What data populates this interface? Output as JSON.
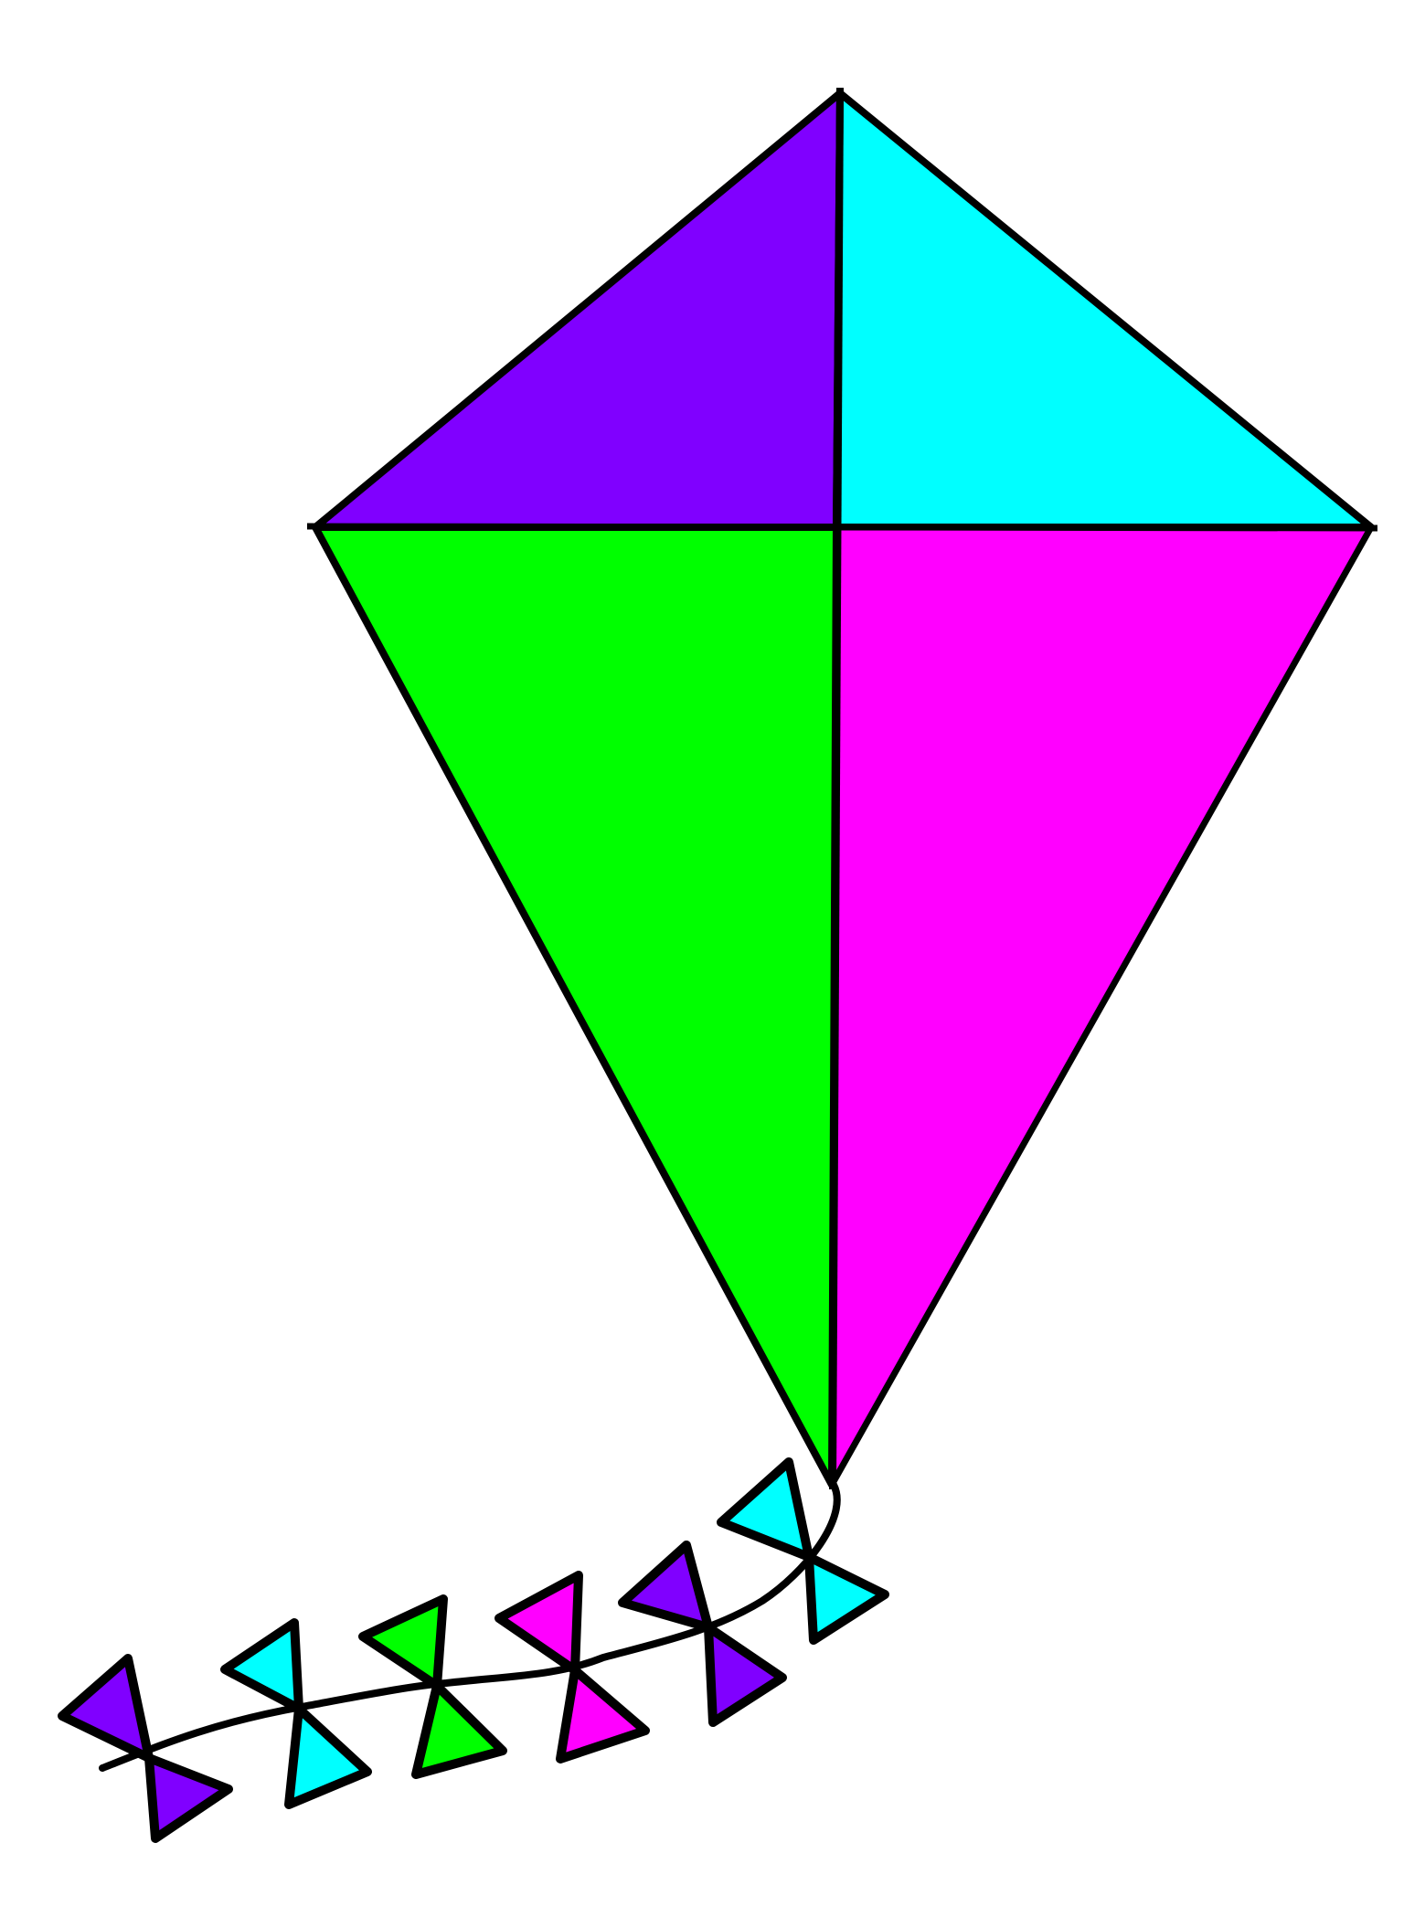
{
  "kite": {
    "colors": {
      "top_left": "#8000ff",
      "top_right": "#00ffff",
      "bottom_left": "#00ff00",
      "bottom_right": "#ff00ff",
      "outline": "#000000",
      "background": "#ffffff"
    }
  },
  "tail": {
    "bow_count": 6,
    "bows": [
      {
        "color": "#8000ff"
      },
      {
        "color": "#00ffff"
      },
      {
        "color": "#00ff00"
      },
      {
        "color": "#ff00ff"
      },
      {
        "color": "#8000ff"
      },
      {
        "color": "#00ffff"
      }
    ]
  }
}
